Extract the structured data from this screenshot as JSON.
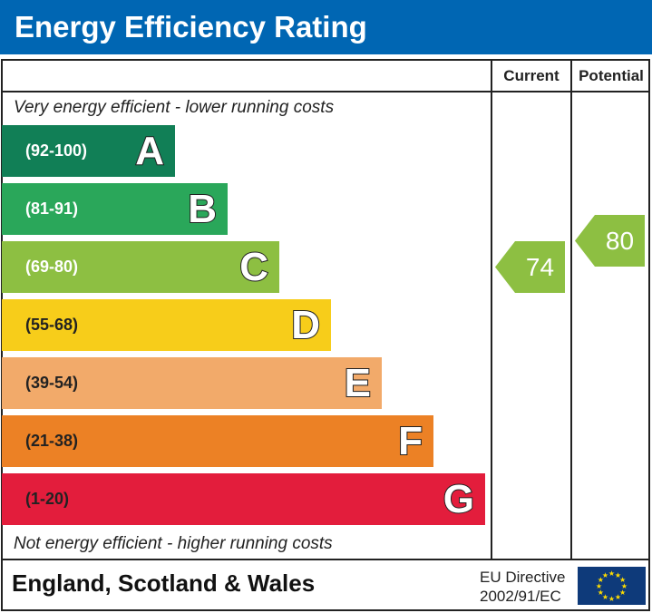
{
  "title": "Energy Efficiency Rating",
  "chart_data": {
    "type": "bar",
    "columns": [
      "Current",
      "Potential"
    ],
    "top_note": "Very energy efficient - lower running costs",
    "bottom_note": "Not energy efficient - higher running costs",
    "bands": [
      {
        "letter": "A",
        "range": "(92-100)",
        "color": "#117f56"
      },
      {
        "letter": "B",
        "range": "(81-91)",
        "color": "#2aa75a"
      },
      {
        "letter": "C",
        "range": "(69-80)",
        "color": "#8dbf42"
      },
      {
        "letter": "D",
        "range": "(55-68)",
        "color": "#f7cd1a"
      },
      {
        "letter": "E",
        "range": "(39-54)",
        "color": "#f2aa6a"
      },
      {
        "letter": "F",
        "range": "(21-38)",
        "color": "#ec8125"
      },
      {
        "letter": "G",
        "range": "(1-20)",
        "color": "#e31d3c"
      }
    ],
    "current": {
      "value": "74",
      "band": "C",
      "color": "#8dbf42"
    },
    "potential": {
      "value": "80",
      "band": "C",
      "color": "#8dbf42"
    }
  },
  "footer": {
    "region": "England, Scotland & Wales",
    "directive_line1": "EU Directive",
    "directive_line2": "2002/91/EC"
  },
  "header_color": "#0066b3"
}
